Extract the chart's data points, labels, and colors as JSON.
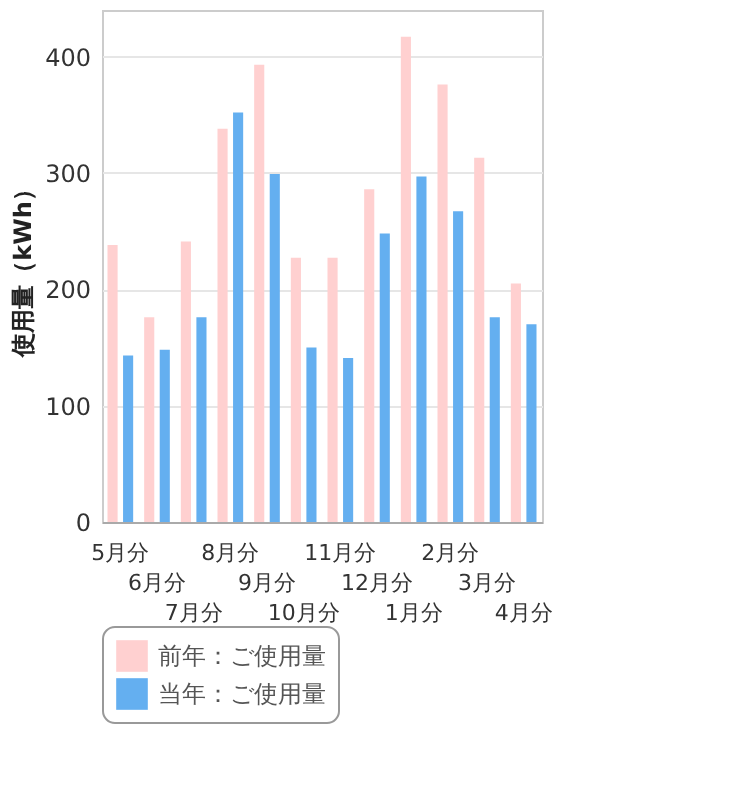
{
  "chart_data": {
    "type": "bar",
    "ylabel": "使用量（kWh）",
    "categories": [
      "5月分",
      "6月分",
      "7月分",
      "8月分",
      "9月分",
      "10月分",
      "11月分",
      "12月分",
      "1月分",
      "2月分",
      "3月分",
      "4月分"
    ],
    "series": [
      {
        "name": "前年：ご使用量",
        "color": "#ffd0d0",
        "values": [
          238,
          176,
          241,
          338,
          393,
          227,
          227,
          286,
          417,
          376,
          313,
          205
        ]
      },
      {
        "name": "当年：ご使用量",
        "color": "#64aff0",
        "values": [
          143,
          148,
          176,
          352,
          299,
          150,
          141,
          248,
          297,
          267,
          176,
          170
        ]
      }
    ],
    "ylim": [
      0,
      440
    ],
    "yticks": [
      0,
      100,
      200,
      300,
      400
    ],
    "grid": "y",
    "legend": "bottom"
  }
}
